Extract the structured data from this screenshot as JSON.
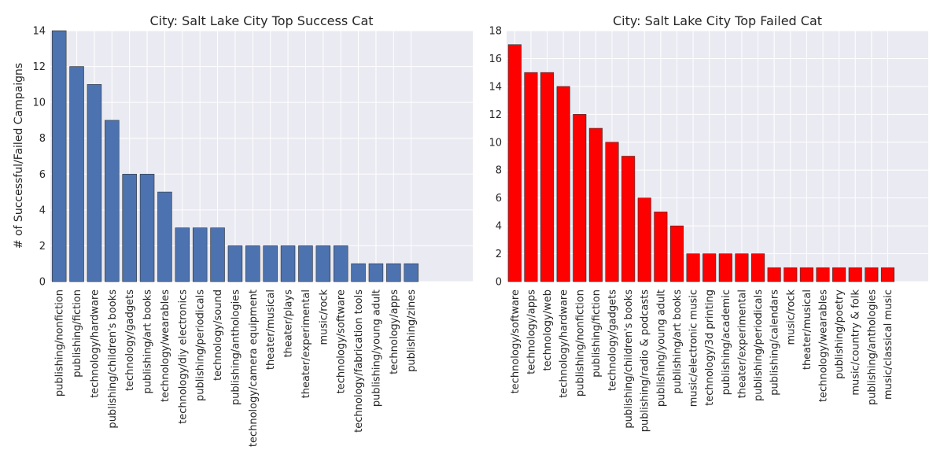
{
  "theme": {
    "plot_bg": "#eaeaf2",
    "grid": "#ffffff",
    "success_color": "#4c72b0",
    "failed_color": "#ff0000",
    "edge": "#333333"
  },
  "ylabel": "# of Successful/Failed Campaigns",
  "chart_data": [
    {
      "type": "bar",
      "title": "City: Salt Lake City Top Success Cat",
      "xlabel": "",
      "ylabel": "# of Successful/Failed Campaigns",
      "ylim": [
        0,
        14
      ],
      "yticks": [
        0,
        2,
        4,
        6,
        8,
        10,
        12,
        14
      ],
      "xlim_slots": 24,
      "grid": true,
      "categories": [
        "publishing/nonfiction",
        "publishing/fiction",
        "technology/hardware",
        "publishing/children's books",
        "technology/gadgets",
        "publishing/art books",
        "technology/wearables",
        "technology/diy electronics",
        "publishing/periodicals",
        "technology/sound",
        "publishing/anthologies",
        "technology/camera equipment",
        "theater/musical",
        "theater/plays",
        "theater/experimental",
        "music/rock",
        "technology/software",
        "technology/fabrication tools",
        "publishing/young adult",
        "technology/apps",
        "publishing/zines"
      ],
      "values": [
        14,
        12,
        11,
        9,
        6,
        6,
        5,
        3,
        3,
        3,
        2,
        2,
        2,
        2,
        2,
        2,
        2,
        1,
        1,
        1,
        1
      ]
    },
    {
      "type": "bar",
      "title": "City: Salt Lake City Top Failed Cat",
      "xlabel": "",
      "ylabel": "",
      "ylim": [
        0,
        18
      ],
      "yticks": [
        0,
        2,
        4,
        6,
        8,
        10,
        12,
        14,
        16,
        18
      ],
      "xlim_slots": 26,
      "grid": true,
      "categories": [
        "technology/software",
        "technology/apps",
        "technology/web",
        "technology/hardware",
        "publishing/nonfiction",
        "publishing/fiction",
        "technology/gadgets",
        "publishing/children's books",
        "publishing/radio & podcasts",
        "publishing/young adult",
        "publishing/art books",
        "music/electronic music",
        "technology/3d printing",
        "publishing/academic",
        "theater/experimental",
        "publishing/periodicals",
        "publishing/calendars",
        "music/rock",
        "theater/musical",
        "technology/wearables",
        "publishing/poetry",
        "music/country & folk",
        "publishing/anthologies",
        "music/classical music"
      ],
      "values": [
        17,
        15,
        15,
        14,
        12,
        11,
        10,
        9,
        6,
        5,
        4,
        2,
        2,
        2,
        2,
        2,
        1,
        1,
        1,
        1,
        1,
        1,
        1,
        1
      ]
    }
  ]
}
